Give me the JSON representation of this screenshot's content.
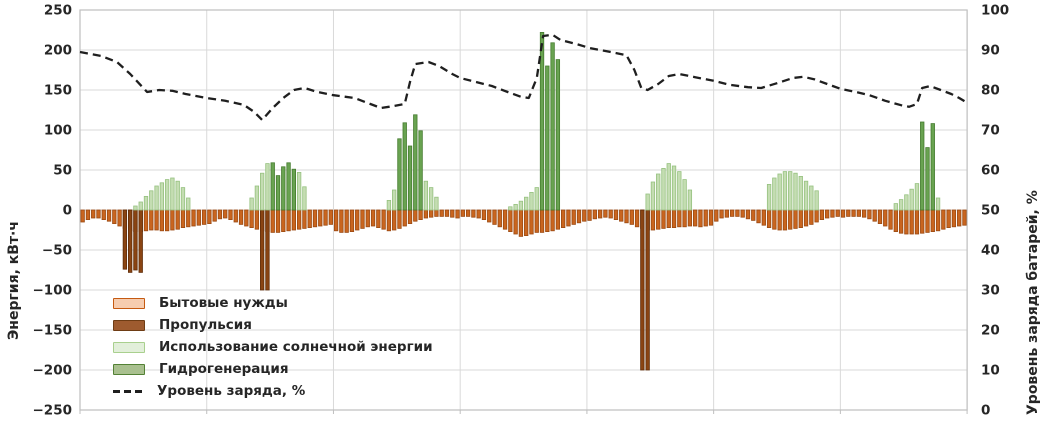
{
  "chart_data": {
    "type": "bar+line",
    "title": "",
    "days": 7,
    "hours_per_day": 24,
    "grid": true,
    "legend_position": "inside-bottom-left",
    "left_axis": {
      "label": "Энергия, кВт·ч",
      "min": -250,
      "max": 250,
      "step": 50,
      "ticks": [
        250,
        200,
        150,
        100,
        50,
        0,
        -50,
        -100,
        -150,
        -200,
        -250
      ]
    },
    "right_axis": {
      "label": "Уровень заряда батарей, %",
      "min": 0,
      "max": 100,
      "step": 10,
      "ticks": [
        100,
        90,
        80,
        70,
        60,
        50,
        40,
        30,
        20,
        10,
        0
      ]
    },
    "series": [
      {
        "name": "Бытовые нужды",
        "fill": "#C9651F",
        "stroke": "#9C4A12",
        "legend_fill": "#F6CDB0",
        "legend_stroke": "#C55A11",
        "values": [
          -15,
          -12,
          -10,
          -10,
          -12,
          -14,
          -17,
          -20,
          -23,
          -26,
          -27,
          -27,
          -26,
          -25,
          -25,
          -26,
          -26,
          -25,
          -24,
          -22,
          -21,
          -20,
          -19,
          -18,
          -17,
          -14,
          -11,
          -10,
          -12,
          -15,
          -18,
          -20,
          -22,
          -24,
          -26,
          -27,
          -28,
          -28,
          -27,
          -26,
          -25,
          -24,
          -23,
          -22,
          -21,
          -20,
          -19,
          -18,
          -26,
          -28,
          -28,
          -27,
          -25,
          -23,
          -21,
          -20,
          -22,
          -24,
          -26,
          -25,
          -23,
          -20,
          -17,
          -14,
          -12,
          -10,
          -9,
          -8,
          -8,
          -8,
          -9,
          -10,
          -8,
          -8,
          -9,
          -10,
          -12,
          -15,
          -18,
          -21,
          -24,
          -27,
          -30,
          -33,
          -32,
          -30,
          -28,
          -28,
          -27,
          -26,
          -24,
          -22,
          -20,
          -18,
          -16,
          -14,
          -13,
          -11,
          -10,
          -9,
          -10,
          -12,
          -14,
          -16,
          -18,
          -21,
          -23,
          -25,
          -25,
          -24,
          -23,
          -22,
          -22,
          -21,
          -21,
          -20,
          -20,
          -21,
          -20,
          -19,
          -14,
          -10,
          -9,
          -8,
          -8,
          -9,
          -11,
          -13,
          -16,
          -19,
          -22,
          -24,
          -25,
          -25,
          -24,
          -23,
          -22,
          -20,
          -18,
          -15,
          -12,
          -10,
          -9,
          -8,
          -9,
          -8,
          -8,
          -8,
          -9,
          -11,
          -14,
          -17,
          -20,
          -24,
          -27,
          -29,
          -30,
          -30,
          -30,
          -29,
          -28,
          -27,
          -26,
          -24,
          -22,
          -21,
          -20,
          -19
        ]
      },
      {
        "name": "Пропульсия",
        "fill": "#8A4412",
        "stroke": "#5F2D0A",
        "legend_fill": "#9E5B2F",
        "legend_stroke": "#6E3C14",
        "values": [
          0,
          0,
          0,
          0,
          0,
          0,
          0,
          0,
          -74,
          -78,
          -75,
          -78,
          0,
          0,
          0,
          0,
          0,
          0,
          0,
          0,
          0,
          0,
          0,
          0,
          0,
          0,
          0,
          0,
          0,
          0,
          0,
          0,
          0,
          0,
          -100,
          -100,
          0,
          0,
          0,
          0,
          0,
          0,
          0,
          0,
          0,
          0,
          0,
          0,
          0,
          0,
          0,
          0,
          0,
          0,
          0,
          0,
          0,
          0,
          0,
          0,
          0,
          0,
          0,
          0,
          0,
          0,
          0,
          0,
          0,
          0,
          0,
          0,
          0,
          0,
          0,
          0,
          0,
          0,
          0,
          0,
          0,
          0,
          0,
          0,
          0,
          0,
          0,
          0,
          0,
          0,
          0,
          0,
          0,
          0,
          0,
          0,
          0,
          0,
          0,
          0,
          0,
          0,
          0,
          0,
          0,
          0,
          -200,
          -200,
          0,
          0,
          0,
          0,
          0,
          0,
          0,
          0,
          0,
          0,
          0,
          0,
          0,
          0,
          0,
          0,
          0,
          0,
          0,
          0,
          0,
          0,
          0,
          0,
          0,
          0,
          0,
          0,
          0,
          0,
          0,
          0,
          0,
          0,
          0,
          0,
          0,
          0,
          0,
          0,
          0,
          0,
          0,
          0,
          0,
          0,
          0,
          0,
          0,
          0,
          0,
          0,
          0,
          0,
          0,
          0,
          0,
          0,
          0,
          0
        ]
      },
      {
        "name": "Использование солнечной энергии",
        "fill": "#C4DDB2",
        "stroke": "#96C17F",
        "legend_fill": "#E2EFDA",
        "legend_stroke": "#A9D08E",
        "values": [
          0,
          0,
          0,
          0,
          0,
          0,
          0,
          0,
          0,
          0,
          5,
          10,
          17,
          24,
          30,
          34,
          38,
          40,
          36,
          28,
          15,
          0,
          0,
          0,
          0,
          0,
          0,
          0,
          0,
          0,
          0,
          0,
          15,
          30,
          46,
          58,
          0,
          0,
          0,
          0,
          0,
          47,
          29,
          0,
          0,
          0,
          0,
          0,
          0,
          0,
          0,
          0,
          0,
          0,
          0,
          0,
          0,
          0,
          12,
          25,
          0,
          0,
          0,
          0,
          0,
          36,
          28,
          16,
          0,
          0,
          0,
          0,
          0,
          0,
          0,
          0,
          0,
          0,
          0,
          0,
          0,
          4,
          7,
          11,
          16,
          22,
          28,
          0,
          0,
          0,
          0,
          0,
          0,
          0,
          0,
          0,
          0,
          0,
          0,
          0,
          0,
          0,
          0,
          0,
          0,
          0,
          0,
          20,
          35,
          45,
          52,
          58,
          55,
          48,
          38,
          25,
          0,
          0,
          0,
          0,
          0,
          0,
          0,
          0,
          0,
          0,
          0,
          0,
          0,
          0,
          32,
          40,
          45,
          48,
          48,
          46,
          42,
          36,
          30,
          24,
          0,
          0,
          0,
          0,
          0,
          0,
          0,
          0,
          0,
          0,
          0,
          0,
          0,
          0,
          8,
          13,
          19,
          26,
          33,
          0,
          0,
          0,
          15,
          0,
          0,
          0,
          0,
          0
        ]
      },
      {
        "name": "Гидрогенерация",
        "fill": "#69A351",
        "stroke": "#447B2E",
        "legend_fill": "#A9C08F",
        "legend_stroke": "#538135",
        "values": [
          0,
          0,
          0,
          0,
          0,
          0,
          0,
          0,
          0,
          0,
          0,
          0,
          0,
          0,
          0,
          0,
          0,
          0,
          0,
          0,
          0,
          0,
          0,
          0,
          0,
          0,
          0,
          0,
          0,
          0,
          0,
          0,
          0,
          0,
          0,
          0,
          59,
          43,
          54,
          59,
          51,
          0,
          0,
          0,
          0,
          0,
          0,
          0,
          0,
          0,
          0,
          0,
          0,
          0,
          0,
          0,
          0,
          0,
          0,
          0,
          89,
          109,
          80,
          119,
          99,
          0,
          0,
          0,
          0,
          0,
          0,
          0,
          0,
          0,
          0,
          0,
          0,
          0,
          0,
          0,
          0,
          0,
          0,
          0,
          0,
          0,
          0,
          222,
          180,
          209,
          188,
          0,
          0,
          0,
          0,
          0,
          0,
          0,
          0,
          0,
          0,
          0,
          0,
          0,
          0,
          0,
          0,
          0,
          0,
          0,
          0,
          0,
          0,
          0,
          0,
          0,
          0,
          0,
          0,
          0,
          0,
          0,
          0,
          0,
          0,
          0,
          0,
          0,
          0,
          0,
          0,
          0,
          0,
          0,
          0,
          0,
          0,
          0,
          0,
          0,
          0,
          0,
          0,
          0,
          0,
          0,
          0,
          0,
          0,
          0,
          0,
          0,
          0,
          0,
          0,
          0,
          0,
          0,
          0,
          110,
          78,
          108,
          0,
          0,
          0,
          0,
          0,
          0
        ]
      }
    ],
    "charge_line": {
      "name": "Уровень заряда, %",
      "color": "#1F1F1F",
      "points": [
        [
          0,
          89.5
        ],
        [
          4,
          88.5
        ],
        [
          7,
          87
        ],
        [
          9.5,
          84
        ],
        [
          12.7,
          79.5
        ],
        [
          15,
          80
        ],
        [
          17.5,
          79.8
        ],
        [
          20,
          79
        ],
        [
          24,
          78
        ],
        [
          27.5,
          77.3
        ],
        [
          31,
          76.3
        ],
        [
          33,
          74.5
        ],
        [
          34.5,
          72.5
        ],
        [
          36.5,
          75.5
        ],
        [
          38.5,
          78
        ],
        [
          40.5,
          80
        ],
        [
          42.5,
          80.5
        ],
        [
          45,
          79.5
        ],
        [
          48,
          78.7
        ],
        [
          52,
          78
        ],
        [
          55,
          76.5
        ],
        [
          57,
          75.5
        ],
        [
          59.5,
          76
        ],
        [
          61.5,
          76.5
        ],
        [
          62.5,
          82
        ],
        [
          63.5,
          86.5
        ],
        [
          66,
          87
        ],
        [
          68,
          86
        ],
        [
          70.5,
          84
        ],
        [
          72,
          83
        ],
        [
          75,
          82
        ],
        [
          78,
          81
        ],
        [
          81,
          79.5
        ],
        [
          83.5,
          78.3
        ],
        [
          85,
          78
        ],
        [
          86.5,
          83
        ],
        [
          87.7,
          93.5
        ],
        [
          89.5,
          93.8
        ],
        [
          91,
          92.5
        ],
        [
          94,
          91.5
        ],
        [
          96.5,
          90.5
        ],
        [
          100.5,
          89.5
        ],
        [
          103.5,
          88.7
        ],
        [
          105,
          85
        ],
        [
          106.3,
          80.5
        ],
        [
          107.5,
          80
        ],
        [
          109.5,
          81.5
        ],
        [
          111.5,
          83.5
        ],
        [
          113.5,
          84
        ],
        [
          116.5,
          83.2
        ],
        [
          120,
          82.3
        ],
        [
          123,
          81.3
        ],
        [
          126.5,
          80.7
        ],
        [
          129,
          80.5
        ],
        [
          132,
          81.7
        ],
        [
          135,
          83
        ],
        [
          137,
          83.3
        ],
        [
          139,
          82.7
        ],
        [
          141.5,
          81.5
        ],
        [
          144,
          80.3
        ],
        [
          147,
          79.5
        ],
        [
          149.5,
          78.7
        ],
        [
          152.5,
          77.3
        ],
        [
          155.5,
          76.2
        ],
        [
          157,
          75.8
        ],
        [
          158.5,
          76.5
        ],
        [
          159.5,
          80.5
        ],
        [
          161,
          81
        ],
        [
          163,
          80
        ],
        [
          165,
          79
        ],
        [
          166.5,
          78
        ],
        [
          167.5,
          77.2
        ]
      ]
    },
    "colors": {
      "gridline": "#D9D9D9",
      "plot_border": "#BFBFBF",
      "tick_label": "#262626"
    }
  }
}
